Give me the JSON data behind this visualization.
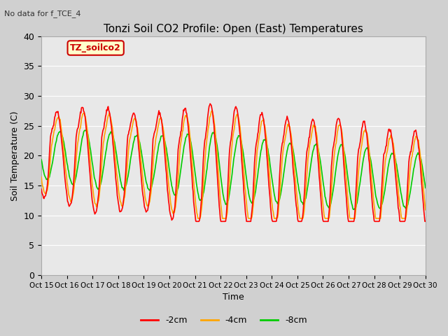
{
  "title": "Tonzi Soil CO2 Profile: Open (East) Temperatures",
  "subtitle": "No data for f_TCE_4",
  "ylabel": "Soil Temperature (C)",
  "xlabel": "Time",
  "legend_label": "TZ_soilco2",
  "series_labels": [
    "-2cm",
    "-4cm",
    "-8cm"
  ],
  "series_colors": [
    "#ff0000",
    "#ffa500",
    "#00cc00"
  ],
  "fig_bg_color": "#d0d0d0",
  "plot_bg_color": "#e8e8e8",
  "ylim": [
    0,
    40
  ],
  "yticks": [
    0,
    5,
    10,
    15,
    20,
    25,
    30,
    35,
    40
  ],
  "xtick_labels": [
    "Oct 15",
    "Oct 16",
    "Oct 17",
    "Oct 18",
    "Oct 19",
    "Oct 20",
    "Oct 21",
    "Oct 22",
    "Oct 23",
    "Oct 24",
    "Oct 25",
    "Oct 26",
    "Oct 27",
    "Oct 28",
    "Oct 29",
    "Oct 30"
  ],
  "figsize": [
    6.4,
    4.8
  ],
  "dpi": 100
}
